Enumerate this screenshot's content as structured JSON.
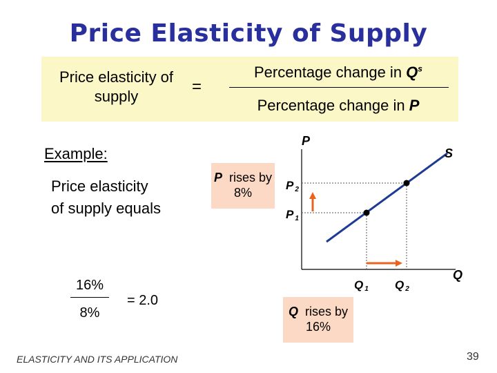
{
  "title": "Price Elasticity of Supply",
  "formula": {
    "lhs": "Price elasticity of supply",
    "equals": "=",
    "numerator_text": "Percentage change in ",
    "numerator_var": "Q",
    "numerator_sup": "s",
    "denominator_text": "Percentage change in ",
    "denominator_var": "P"
  },
  "example": {
    "label": "Example:",
    "text": "Price elasticity of supply equals",
    "numerator": "16%",
    "denominator": "8%",
    "result": "=  2.0"
  },
  "notes": {
    "price_var": "P",
    "price_text": "rises by 8%",
    "qty_var": "Q",
    "qty_text": "rises by 16%"
  },
  "graph": {
    "y_axis": "P",
    "x_axis": "Q",
    "curve": "S",
    "p1": "P",
    "p1_sub": "1",
    "p2": "P",
    "p2_sub": "2",
    "q1": "Q",
    "q1_sub": "1",
    "q2": "Q",
    "q2_sub": "2",
    "curve_color": "#1f3a93",
    "arrow_color": "#e8641c"
  },
  "footer": {
    "text": "ELASTICITY AND ITS APPLICATION",
    "page": "39"
  }
}
